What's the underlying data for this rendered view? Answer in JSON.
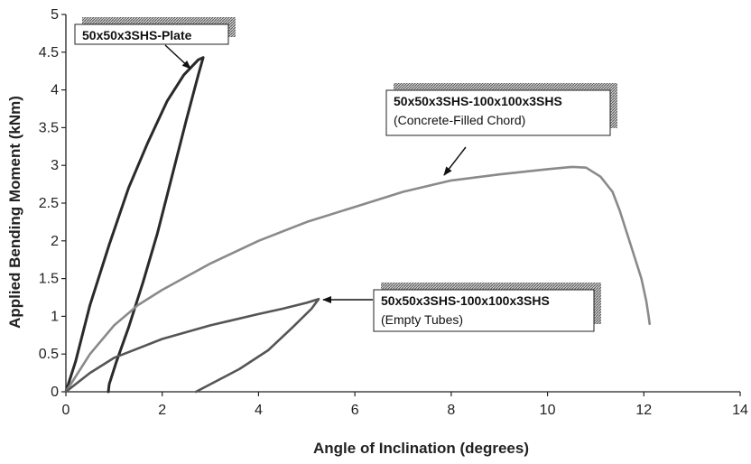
{
  "chart_data": {
    "type": "line",
    "xlabel": "Angle of Inclination (degrees)",
    "ylabel": "Applied Bending Moment (kNm)",
    "xlim": [
      0,
      14
    ],
    "ylim": [
      0,
      5
    ],
    "x_ticks": [
      "0",
      "2",
      "4",
      "6",
      "8",
      "10",
      "12",
      "14"
    ],
    "y_ticks": [
      "0",
      "0.5",
      "1",
      "1.5",
      "2",
      "2.5",
      "3",
      "3.5",
      "4",
      "4.5",
      "5"
    ],
    "grid": false,
    "series": [
      {
        "name": "50x50x3SHS-Plate",
        "color": "#2a2a2a",
        "points": [
          [
            0,
            0
          ],
          [
            0.2,
            0.4
          ],
          [
            0.5,
            1.15
          ],
          [
            0.9,
            1.95
          ],
          [
            1.3,
            2.7
          ],
          [
            1.7,
            3.3
          ],
          [
            2.1,
            3.85
          ],
          [
            2.45,
            4.2
          ],
          [
            2.75,
            4.4
          ],
          [
            2.85,
            4.43
          ],
          [
            2.75,
            4.2
          ],
          [
            2.5,
            3.6
          ],
          [
            2.2,
            2.85
          ],
          [
            1.9,
            2.1
          ],
          [
            1.6,
            1.45
          ],
          [
            1.3,
            0.85
          ],
          [
            1.05,
            0.4
          ],
          [
            0.9,
            0.1
          ],
          [
            0.88,
            0
          ]
        ]
      },
      {
        "name": "50x50x3SHS-100x100x3SHS (Concrete-Filled Chord)",
        "color": "#8a8a8a",
        "points": [
          [
            0,
            0
          ],
          [
            0.5,
            0.5
          ],
          [
            1,
            0.88
          ],
          [
            1.5,
            1.15
          ],
          [
            2,
            1.35
          ],
          [
            3,
            1.7
          ],
          [
            4,
            2.0
          ],
          [
            5,
            2.25
          ],
          [
            6,
            2.45
          ],
          [
            7,
            2.65
          ],
          [
            8,
            2.8
          ],
          [
            9,
            2.88
          ],
          [
            10,
            2.95
          ],
          [
            10.5,
            2.98
          ],
          [
            10.8,
            2.97
          ],
          [
            11.1,
            2.85
          ],
          [
            11.35,
            2.65
          ],
          [
            11.5,
            2.4
          ],
          [
            11.65,
            2.1
          ],
          [
            11.8,
            1.8
          ],
          [
            11.95,
            1.5
          ],
          [
            12.05,
            1.2
          ],
          [
            12.1,
            1.0
          ],
          [
            12.12,
            0.9
          ]
        ]
      },
      {
        "name": "50x50x3SHS-100x100x3SHS (Empty Tubes)",
        "color": "#555555",
        "points": [
          [
            0,
            0
          ],
          [
            0.5,
            0.25
          ],
          [
            1,
            0.45
          ],
          [
            2,
            0.7
          ],
          [
            3,
            0.88
          ],
          [
            4,
            1.03
          ],
          [
            4.5,
            1.1
          ],
          [
            5.0,
            1.18
          ],
          [
            5.25,
            1.23
          ],
          [
            5.1,
            1.1
          ],
          [
            4.7,
            0.85
          ],
          [
            4.2,
            0.55
          ],
          [
            3.6,
            0.3
          ],
          [
            3.0,
            0.1
          ],
          [
            2.7,
            0
          ]
        ]
      }
    ],
    "annotations": [
      {
        "lines": [
          "50x50x3SHS-Plate"
        ]
      },
      {
        "lines": [
          "50x50x3SHS-100x100x3SHS",
          "(Concrete-Filled Chord)"
        ]
      },
      {
        "lines": [
          "50x50x3SHS-100x100x3SHS",
          "(Empty Tubes)"
        ]
      }
    ]
  }
}
